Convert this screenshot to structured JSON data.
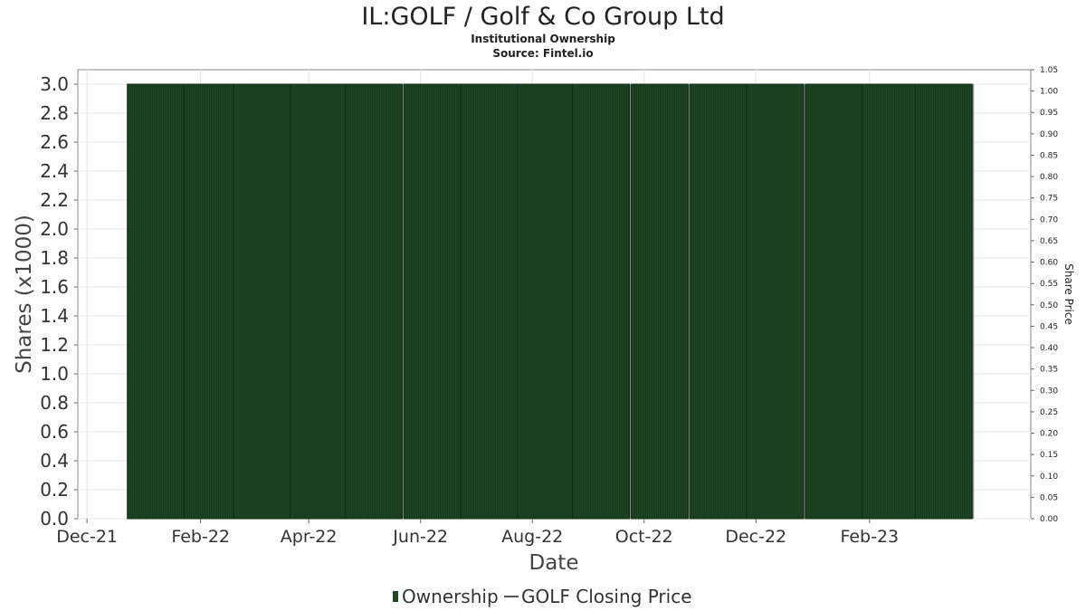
{
  "chart_data": {
    "type": "bar",
    "title": "IL:GOLF / Golf & Co Group Ltd",
    "subtitle": "Institutional Ownership",
    "source": "Source: Fintel.io",
    "xlabel": "Date",
    "ylabel": "Shares (x1000)",
    "y2label": "Share Price",
    "ylim": [
      0,
      3.1
    ],
    "y2lim": [
      0,
      1.05
    ],
    "yticks": [
      "0.0",
      "0.2",
      "0.4",
      "0.6",
      "0.8",
      "1.0",
      "1.2",
      "1.4",
      "1.6",
      "1.8",
      "2.0",
      "2.2",
      "2.4",
      "2.6",
      "2.8",
      "3.0"
    ],
    "y2ticks": [
      "0.00",
      "0.05",
      "0.10",
      "0.15",
      "0.20",
      "0.25",
      "0.30",
      "0.35",
      "0.40",
      "0.45",
      "0.50",
      "0.55",
      "0.60",
      "0.65",
      "0.70",
      "0.75",
      "0.80",
      "0.85",
      "0.90",
      "0.95",
      "1.00",
      "1.05"
    ],
    "xticks": [
      "Dec-21",
      "Feb-22",
      "Apr-22",
      "Jun-22",
      "Aug-22",
      "Oct-22",
      "Dec-22",
      "Feb-23"
    ],
    "xrange": [
      "2021-11-26",
      "2023-04-30"
    ],
    "grid": true,
    "legend_position": "bottom-center",
    "series": [
      {
        "name": "Ownership",
        "color": "#1e4a23",
        "bars": [
          {
            "start": "2021-12-23",
            "end": "2022-01-22",
            "value": 3.0
          },
          {
            "start": "2022-01-23",
            "end": "2022-02-21",
            "value": 3.0
          },
          {
            "start": "2022-02-19",
            "end": "2022-03-21",
            "value": 3.0
          },
          {
            "start": "2022-03-22",
            "end": "2022-04-21",
            "value": 3.0
          },
          {
            "start": "2022-04-21",
            "end": "2022-05-21",
            "value": 3.0
          },
          {
            "start": "2022-05-23",
            "end": "2022-06-22",
            "value": 3.0
          },
          {
            "start": "2022-06-23",
            "end": "2022-07-23",
            "value": 3.0
          },
          {
            "start": "2022-07-24",
            "end": "2022-08-23",
            "value": 3.0
          },
          {
            "start": "2022-08-23",
            "end": "2022-09-22",
            "value": 3.0
          },
          {
            "start": "2022-09-24",
            "end": "2022-10-24",
            "value": 3.0
          },
          {
            "start": "2022-10-26",
            "end": "2022-11-25",
            "value": 3.0
          },
          {
            "start": "2022-11-26",
            "end": "2022-12-26",
            "value": 3.0
          },
          {
            "start": "2022-12-28",
            "end": "2023-01-27",
            "value": 3.0
          },
          {
            "start": "2023-01-28",
            "end": "2023-02-27",
            "value": 3.0
          },
          {
            "start": "2023-02-26",
            "end": "2023-03-28",
            "value": 3.0
          }
        ]
      },
      {
        "name": "GOLF Closing Price",
        "color": "#555555",
        "values": []
      }
    ]
  }
}
